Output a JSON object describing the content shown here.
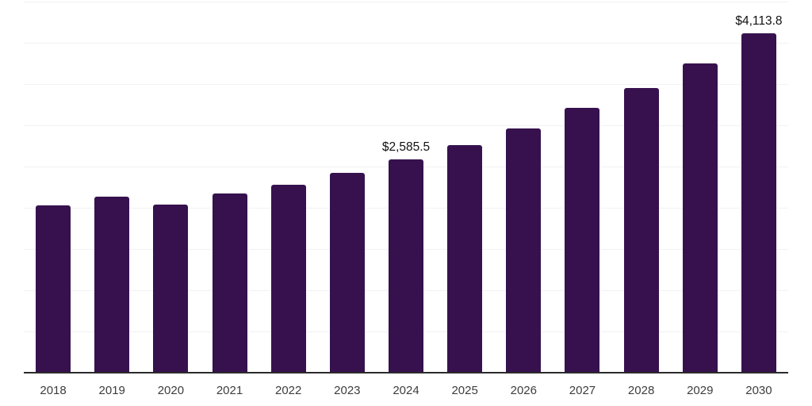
{
  "chart_data": {
    "type": "bar",
    "title": "",
    "xlabel": "",
    "ylabel": "",
    "categories": [
      "2018",
      "2019",
      "2020",
      "2021",
      "2022",
      "2023",
      "2024",
      "2025",
      "2026",
      "2027",
      "2028",
      "2029",
      "2030"
    ],
    "values": [
      2030,
      2135,
      2040,
      2175,
      2280,
      2420,
      2585.5,
      2757,
      2958,
      3207,
      3456,
      3753,
      4113.8
    ],
    "value_labels": [
      "",
      "",
      "",
      "",
      "",
      "",
      "$2,585.5",
      "",
      "",
      "",
      "",
      "",
      "$4,113.8"
    ],
    "ylim": [
      0,
      4500
    ],
    "grid_step": 500,
    "grid": true,
    "y_axis_tick_labels_visible": false,
    "legend": "none",
    "bar_color": "#36114E",
    "axis_line_color": "#2b2b2b",
    "grid_color": "#f2f2f3",
    "tick_label_color": "#3d3d3d",
    "data_label_color": "#111111",
    "background_color": "#ffffff"
  }
}
